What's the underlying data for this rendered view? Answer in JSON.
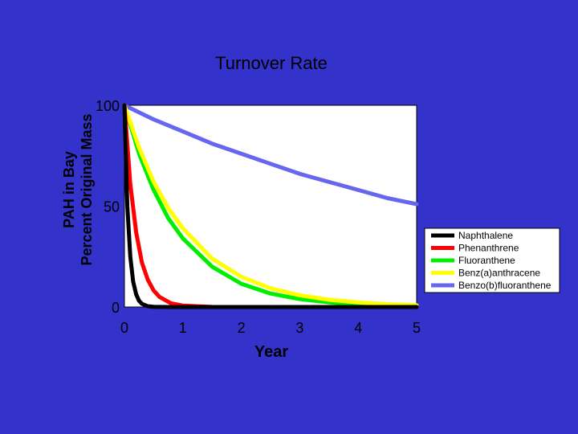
{
  "chart_data": {
    "type": "line",
    "title": "Turnover Rate",
    "ylabel_line1": "PAH in Bay",
    "ylabel_line2": "Percent Original Mass",
    "xlabel": "Year",
    "xlim": [
      0,
      5
    ],
    "ylim": [
      0,
      100
    ],
    "xticks": [
      "0",
      "1",
      "2",
      "3",
      "4",
      "5"
    ],
    "yticks": [
      "0",
      "50",
      "100"
    ],
    "legend_position": "right",
    "series": [
      {
        "name": "Naphthalene",
        "color": "#000000",
        "x": [
          0,
          0.05,
          0.1,
          0.15,
          0.2,
          0.25,
          0.3,
          0.4,
          0.5,
          0.75,
          1,
          5
        ],
        "y": [
          100,
          50,
          25,
          12.5,
          6.3,
          3.1,
          1.6,
          0.4,
          0.1,
          0,
          0,
          0
        ]
      },
      {
        "name": "Phenanthrene",
        "color": "#ff0000",
        "x": [
          0,
          0.1,
          0.2,
          0.3,
          0.4,
          0.5,
          0.6,
          0.8,
          1,
          1.5,
          2,
          5
        ],
        "y": [
          100,
          61,
          37,
          22,
          13.5,
          8.2,
          5,
          1.8,
          0.7,
          0.05,
          0,
          0
        ]
      },
      {
        "name": "Fluoranthene",
        "color": "#00ee00",
        "x": [
          0,
          0.25,
          0.5,
          0.75,
          1,
          1.5,
          2,
          2.5,
          3,
          3.5,
          4,
          4.5,
          5
        ],
        "y": [
          100,
          76,
          58,
          44,
          34,
          20,
          11.5,
          6.7,
          3.9,
          2.3,
          1.3,
          0.8,
          0.5
        ]
      },
      {
        "name": "Benz(a)anthracene",
        "color": "#ffff00",
        "x": [
          0,
          0.25,
          0.5,
          0.75,
          1,
          1.5,
          2,
          2.5,
          3,
          3.5,
          4,
          4.5,
          5
        ],
        "y": [
          100,
          79,
          62,
          49,
          39,
          24,
          15,
          9.3,
          5.8,
          3.6,
          2.3,
          1.4,
          0.9
        ]
      },
      {
        "name": "Benzo(b)fluoranthene",
        "color": "#6666ee",
        "x": [
          0,
          0.5,
          1,
          1.5,
          2,
          2.5,
          3,
          3.5,
          4,
          4.5,
          5
        ],
        "y": [
          100,
          93,
          87,
          81,
          76,
          71,
          66,
          62,
          58,
          54,
          51
        ]
      }
    ]
  }
}
